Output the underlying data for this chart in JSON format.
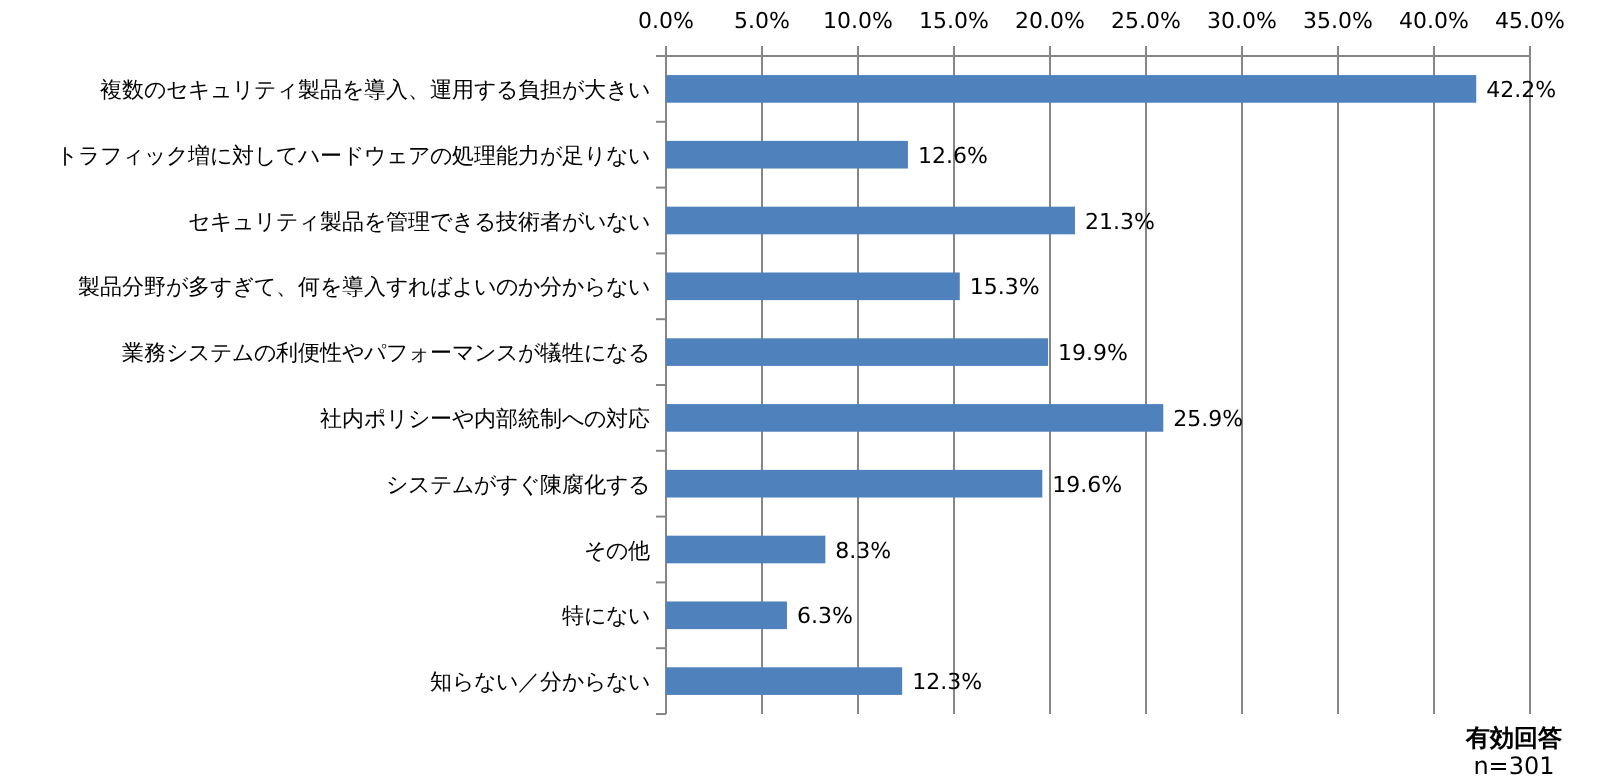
{
  "chart_data": {
    "type": "bar",
    "orientation": "horizontal",
    "categories": [
      "複数のセキュリティ製品を導入、運用する負担が大きい",
      "トラフィック増に対してハードウェアの処理能力が足りない",
      "セキュリティ製品を管理できる技術者がいない",
      "製品分野が多すぎて、何を導入すればよいのか分からない",
      "業務システムの利便性やパフォーマンスが犠牲になる",
      "社内ポリシーや内部統制への対応",
      "システムがすぐ陳腐化する",
      "その他",
      "特にない",
      "知らない／分からない"
    ],
    "values": [
      42.2,
      12.6,
      21.3,
      15.3,
      19.9,
      25.9,
      19.6,
      8.3,
      6.3,
      12.3
    ],
    "value_labels": [
      "42.2%",
      "12.6%",
      "21.3%",
      "15.3%",
      "19.9%",
      "25.9%",
      "19.6%",
      "8.3%",
      "6.3%",
      "12.3%"
    ],
    "color": "#4f81bd",
    "xlim": [
      0,
      45
    ],
    "xticks": [
      {
        "value": 0,
        "label": "0.0%"
      },
      {
        "value": 5,
        "label": "5.0%"
      },
      {
        "value": 10,
        "label": "10.0%"
      },
      {
        "value": 15,
        "label": "15.0%"
      },
      {
        "value": 20,
        "label": "20.0%"
      },
      {
        "value": 25,
        "label": "25.0%"
      },
      {
        "value": 30,
        "label": "30.0%"
      },
      {
        "value": 35,
        "label": "35.0%"
      },
      {
        "value": 40,
        "label": "40.0%"
      },
      {
        "value": 45,
        "label": "45.0%"
      }
    ],
    "grid": "x",
    "annotations": [
      "有効回答",
      "n=301"
    ]
  }
}
